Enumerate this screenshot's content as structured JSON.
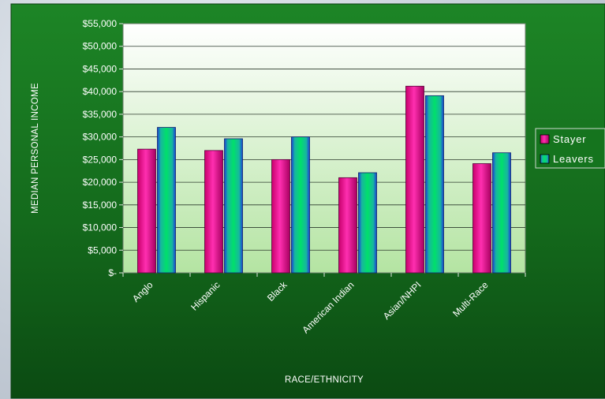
{
  "chart_data": {
    "type": "bar",
    "title": "",
    "xlabel": "RACE/ETHNICITY",
    "ylabel": "MEDIAN PERSONAL INCOME",
    "ylim": [
      0,
      55000
    ],
    "ytick_step": 5000,
    "yticks": [
      "$-",
      "$5,000",
      "$10,000",
      "$15,000",
      "$20,000",
      "$25,000",
      "$30,000",
      "$35,000",
      "$40,000",
      "$45,000",
      "$50,000",
      "$55,000"
    ],
    "categories": [
      "Anglo",
      "Hispanic",
      "Black",
      "American Indian",
      "Asian/NHPI",
      "Multi-Race"
    ],
    "series": [
      {
        "name": "Stayer",
        "values": [
          27300,
          27000,
          25000,
          21000,
          41200,
          24100
        ]
      },
      {
        "name": "Leavers",
        "values": [
          32100,
          29600,
          30000,
          22100,
          39100,
          26500
        ]
      }
    ],
    "legend_position": "right",
    "grid": true
  },
  "colors": {
    "stayer": "#ff0099",
    "leavers": "#00cc66",
    "leavers_edge": "#1a3fd6",
    "panel": "#15741e",
    "plot_top": "#ffffff",
    "plot_bottom": "#b6e6a4"
  }
}
